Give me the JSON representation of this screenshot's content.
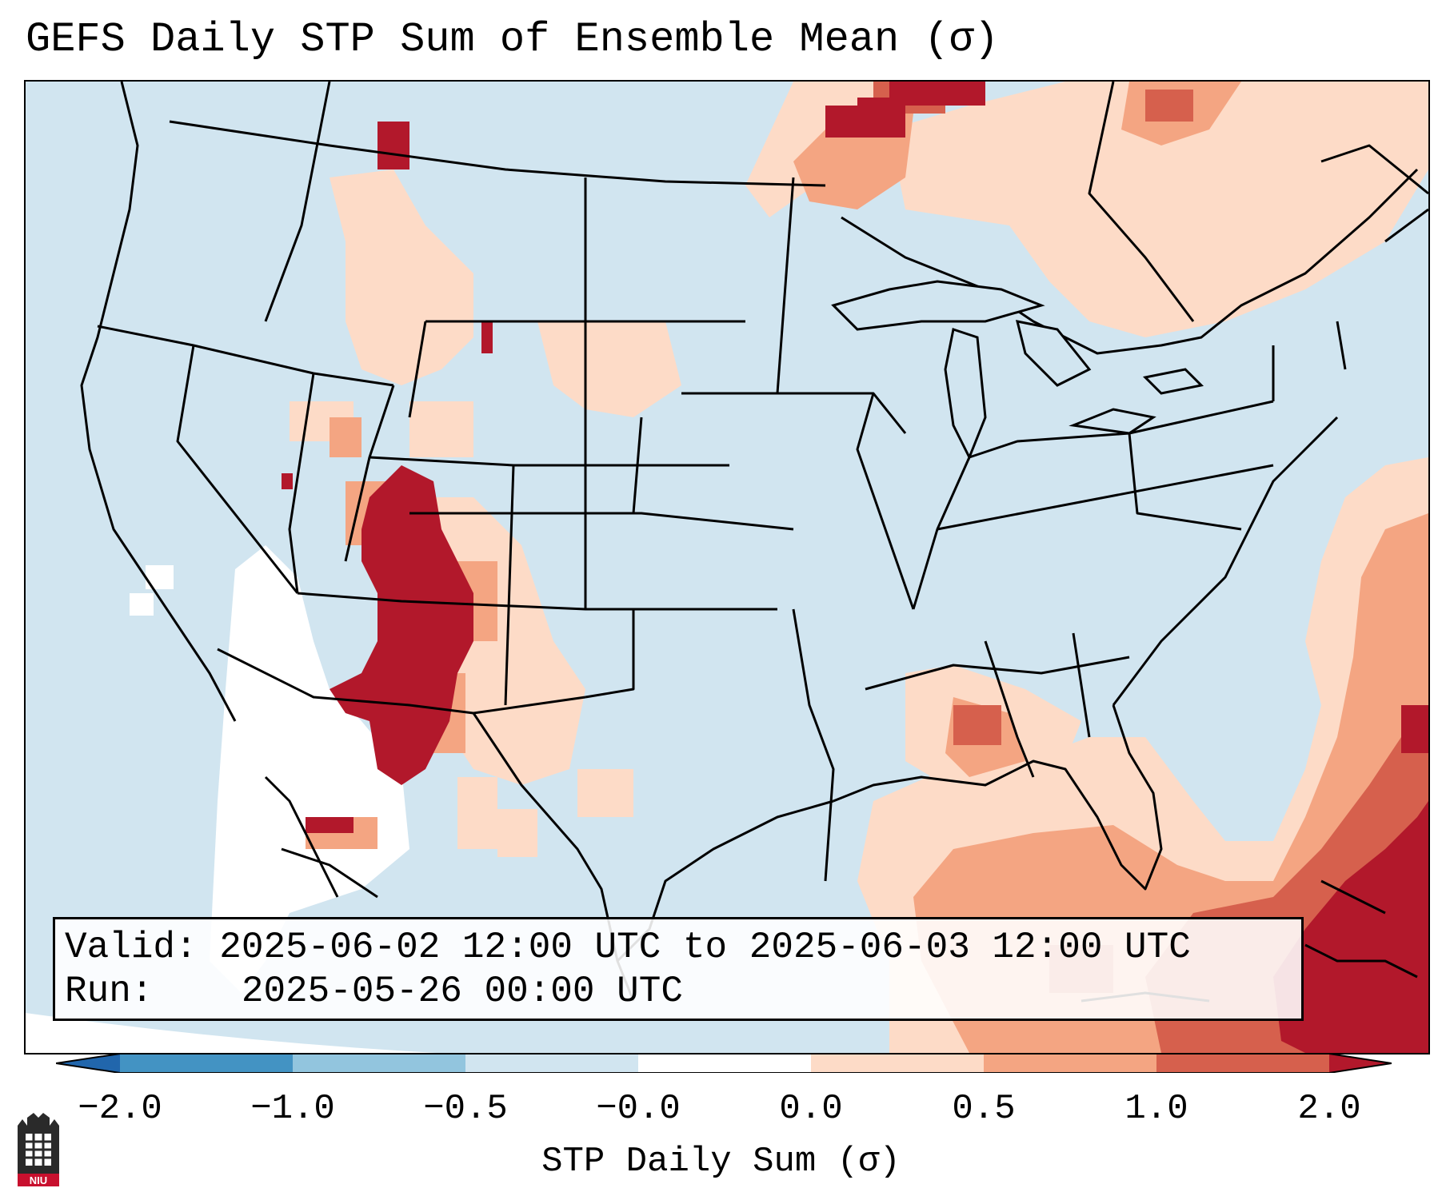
{
  "title": "GEFS Daily STP Sum of Ensemble Mean (σ)",
  "info": {
    "valid_label": "Valid:",
    "valid_value": "2025-06-02 12:00 UTC to 2025-06-03 12:00 UTC",
    "run_label": "Run:",
    "run_value": "2025-05-26 00:00 UTC"
  },
  "colorbar": {
    "label": "STP Daily Sum (σ)",
    "ticks": [
      "−2.0",
      "−1.0",
      "−0.5",
      "−0.0",
      "0.0",
      "0.5",
      "1.0",
      "2.0"
    ],
    "colors": {
      "under": "#2166ac",
      "bin1": "#4393c3",
      "bin2": "#92c5de",
      "bin3": "#d1e5f0",
      "bin4": "#ffffff",
      "bin5": "#fddbc7",
      "bin6": "#f4a582",
      "bin7": "#d6604d",
      "over": "#b2182b"
    }
  },
  "logo": {
    "text": "NIU",
    "color": "#c8102e"
  }
}
